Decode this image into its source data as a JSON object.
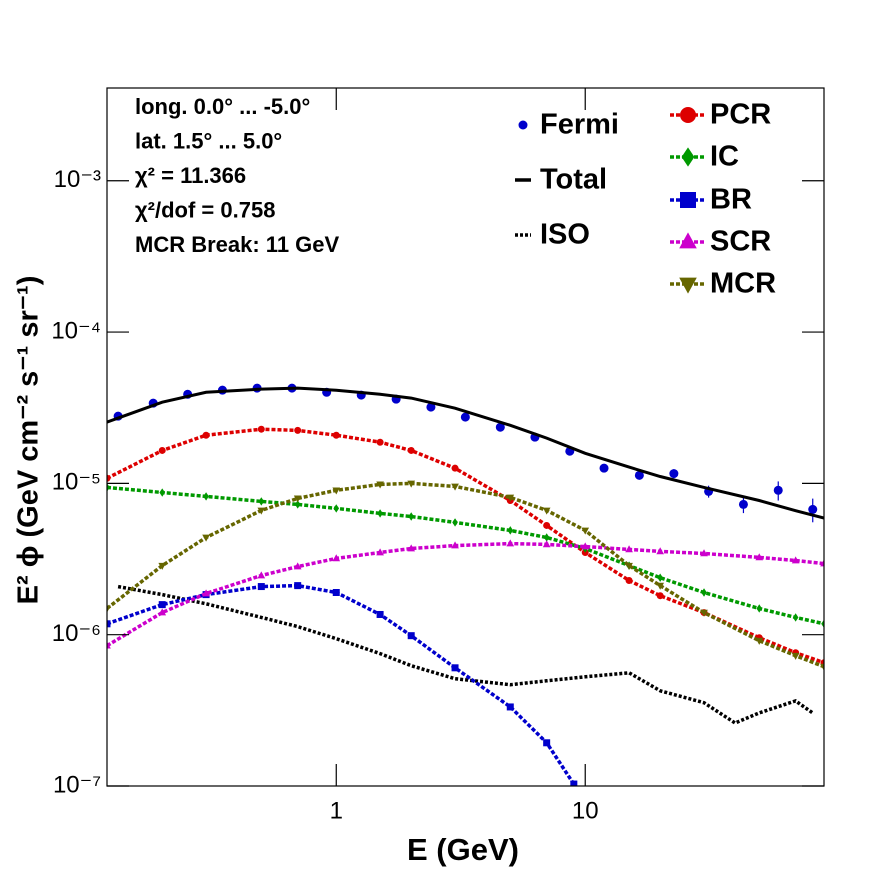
{
  "chart_data": {
    "type": "line",
    "x_label": "E (GeV)",
    "y_label": "E² ϕ (GeV cm⁻² s⁻¹ sr⁻¹)",
    "annotations": [
      "long. 0.0° ... -5.0°",
      "lat. 1.5° ... 5.0°",
      "χ² = 11.366",
      "χ²/dof = 0.758",
      "MCR Break: 11 GeV"
    ],
    "log_x": true,
    "log_y": true,
    "xlim": [
      0.12,
      91
    ],
    "ylim": [
      1e-07,
      0.0041
    ],
    "xticks": [
      1,
      10
    ],
    "yticks": [
      {
        "value": 1e-07,
        "label": "10⁻⁷"
      },
      {
        "value": 1e-06,
        "label": "10⁻⁶"
      },
      {
        "value": 1e-05,
        "label": "10⁻⁵"
      },
      {
        "value": 0.0001,
        "label": "10⁻⁴"
      },
      {
        "value": 0.001,
        "label": "10⁻³"
      }
    ],
    "series": [
      {
        "name": "Fermi",
        "color": "#0000cc",
        "style": "points",
        "x": [
          0.133,
          0.184,
          0.253,
          0.349,
          0.481,
          0.664,
          0.915,
          1.26,
          1.74,
          2.4,
          3.3,
          4.56,
          6.28,
          8.67,
          11.9,
          16.5,
          22.7,
          31.3,
          43.2,
          59.6,
          82.0
        ],
        "values": [
          2.78e-05,
          3.39e-05,
          3.88e-05,
          4.13e-05,
          4.26e-05,
          4.26e-05,
          4e-05,
          3.83e-05,
          3.6e-05,
          3.19e-05,
          2.74e-05,
          2.35e-05,
          2.02e-05,
          1.63e-05,
          1.26e-05,
          1.13e-05,
          1.16e-05,
          8.85e-06,
          7.26e-06,
          9e-06,
          6.73e-06
        ],
        "errors": [
          1e-06,
          1.2e-06,
          1.4e-06,
          1.5e-06,
          1.5e-06,
          1.5e-06,
          1.4e-06,
          1.3e-06,
          1.2e-06,
          1.1e-06,
          1e-06,
          9e-07,
          8e-07,
          7e-07,
          8e-07,
          7e-07,
          8e-07,
          8e-07,
          9e-07,
          1.3e-06,
          1.2e-06
        ]
      },
      {
        "name": "Total",
        "color": "#000000",
        "style": "solid",
        "x": [
          0.12,
          0.2,
          0.3,
          0.5,
          0.7,
          1,
          1.5,
          2,
          3,
          5,
          7,
          10,
          15,
          20,
          30,
          50,
          70,
          91
        ],
        "values": [
          2.54e-05,
          3.44e-05,
          4e-05,
          4.2e-05,
          4.26e-05,
          4.13e-05,
          3.88e-05,
          3.66e-05,
          3.14e-05,
          2.42e-05,
          1.99e-05,
          1.58e-05,
          1.28e-05,
          1.11e-05,
          9.4e-06,
          7.7e-06,
          6.6e-06,
          5.9e-06
        ]
      },
      {
        "name": "ISO",
        "color": "#000000",
        "style": "dotted",
        "x": [
          0.133,
          0.2,
          0.3,
          0.5,
          0.7,
          1,
          1.5,
          2,
          3,
          5,
          7,
          10,
          15,
          20,
          30,
          40,
          50,
          70,
          82
        ],
        "values": [
          2.08e-06,
          1.84e-06,
          1.6e-06,
          1.3e-06,
          1.13e-06,
          9.4e-07,
          7.5e-07,
          6.24e-07,
          5.12e-07,
          4.67e-07,
          4.96e-07,
          5.27e-07,
          5.6e-07,
          4.26e-07,
          3.55e-07,
          2.61e-07,
          3.04e-07,
          3.65e-07,
          3.04e-07
        ]
      },
      {
        "name": "PCR",
        "color": "#dd0000",
        "style": "marked",
        "marker": "circle",
        "x": [
          0.12,
          0.2,
          0.3,
          0.5,
          0.7,
          1,
          1.5,
          2,
          3,
          5,
          7,
          10,
          15,
          20,
          30,
          50,
          70,
          91
        ],
        "values": [
          1.08e-05,
          1.65e-05,
          2.08e-05,
          2.28e-05,
          2.24e-05,
          2.08e-05,
          1.87e-05,
          1.65e-05,
          1.26e-05,
          7.7e-06,
          5.27e-06,
          3.49e-06,
          2.28e-06,
          1.81e-06,
          1.4e-06,
          9.55e-07,
          7.6e-07,
          6.53e-07
        ]
      },
      {
        "name": "IC",
        "color": "#009900",
        "style": "marked",
        "marker": "diamond",
        "x": [
          0.12,
          0.2,
          0.3,
          0.5,
          0.7,
          1,
          1.5,
          2,
          3,
          5,
          7,
          10,
          15,
          20,
          30,
          50,
          70,
          91
        ],
        "values": [
          9.4e-06,
          8.7e-06,
          8.2e-06,
          7.6e-06,
          7.26e-06,
          6.83e-06,
          6.33e-06,
          6.04e-06,
          5.52e-06,
          4.89e-06,
          4.39e-06,
          3.71e-06,
          2.86e-06,
          2.38e-06,
          1.9e-06,
          1.49e-06,
          1.3e-06,
          1.18e-06
        ]
      },
      {
        "name": "BR",
        "color": "#0000cc",
        "style": "marked",
        "marker": "square",
        "x": [
          0.12,
          0.2,
          0.3,
          0.5,
          0.7,
          1,
          1.5,
          2,
          3,
          5,
          7,
          9
        ],
        "values": [
          1.18e-06,
          1.58e-06,
          1.84e-06,
          2.08e-06,
          2.11e-06,
          1.9e-06,
          1.36e-06,
          9.85e-07,
          6.04e-07,
          3.33e-07,
          1.93e-07,
          1.03e-07
        ]
      },
      {
        "name": "SCR",
        "color": "#cc00cc",
        "style": "marked",
        "marker": "triangle",
        "x": [
          0.12,
          0.2,
          0.3,
          0.5,
          0.7,
          1,
          1.5,
          2,
          3,
          5,
          7,
          10,
          15,
          20,
          30,
          50,
          70,
          91
        ],
        "values": [
          8.46e-07,
          1.4e-06,
          1.87e-06,
          2.46e-06,
          2.82e-06,
          3.19e-06,
          3.49e-06,
          3.71e-06,
          3.88e-06,
          4e-06,
          3.95e-06,
          3.82e-06,
          3.66e-06,
          3.55e-06,
          3.44e-06,
          3.24e-06,
          3.09e-06,
          2.95e-06
        ]
      },
      {
        "name": "MCR",
        "color": "#666600",
        "style": "marked",
        "marker": "triangle-down",
        "x": [
          0.12,
          0.2,
          0.3,
          0.5,
          0.7,
          1,
          1.5,
          2,
          3,
          5,
          7,
          10,
          15,
          20,
          30,
          50,
          70,
          91
        ],
        "values": [
          1.49e-06,
          2.86e-06,
          4.39e-06,
          6.63e-06,
          7.96e-06,
          9e-06,
          9.85e-06,
          1e-05,
          9.55e-06,
          8.08e-06,
          6.63e-06,
          4.89e-06,
          2.86e-06,
          2.11e-06,
          1.4e-06,
          9.12e-07,
          7.26e-07,
          6.14e-07
        ]
      }
    ]
  }
}
